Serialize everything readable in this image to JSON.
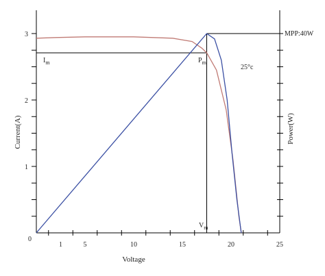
{
  "chart_data": {
    "type": "line",
    "xlabel": "Voltage",
    "ylabel_left": "Current(A)",
    "ylabel_right": "Power(W)",
    "x_ticks": [
      0,
      1,
      5,
      10,
      15,
      20,
      25
    ],
    "y_ticks": [
      1,
      2,
      3
    ],
    "origin_label": "0",
    "xlim": [
      0,
      25
    ],
    "ylim": [
      0,
      3
    ],
    "grid": false,
    "colors": {
      "current": "#c07a74",
      "power": "#3a4fa3",
      "axis": "#000000"
    },
    "series": [
      {
        "key": "current",
        "points": [
          [
            0,
            2.93
          ],
          [
            2,
            2.94
          ],
          [
            5,
            2.95
          ],
          [
            10,
            2.95
          ],
          [
            14,
            2.93
          ],
          [
            16,
            2.88
          ],
          [
            17,
            2.78
          ],
          [
            17.5,
            2.71
          ],
          [
            18.5,
            2.45
          ],
          [
            19.5,
            1.85
          ],
          [
            20.2,
            1.1
          ],
          [
            20.8,
            0.25
          ],
          [
            21.05,
            0
          ]
        ]
      },
      {
        "key": "power",
        "points": [
          [
            0,
            0
          ],
          [
            17.5,
            3.0
          ],
          [
            18.3,
            2.92
          ],
          [
            19.0,
            2.6
          ],
          [
            19.6,
            2.0
          ],
          [
            20.1,
            1.2
          ],
          [
            20.6,
            0.5
          ],
          [
            21.0,
            0.05
          ],
          [
            21.05,
            0
          ]
        ]
      }
    ],
    "annotations": {
      "im": {
        "main": "I",
        "sub": "m"
      },
      "pm": {
        "main": "P",
        "sub": "m"
      },
      "vm": {
        "main": "V",
        "sub": "m"
      },
      "temp": "25°c",
      "mpp": "MPP:40W"
    },
    "markers": {
      "vm": 17.5,
      "im": 2.71,
      "pmax": 3.0
    }
  }
}
